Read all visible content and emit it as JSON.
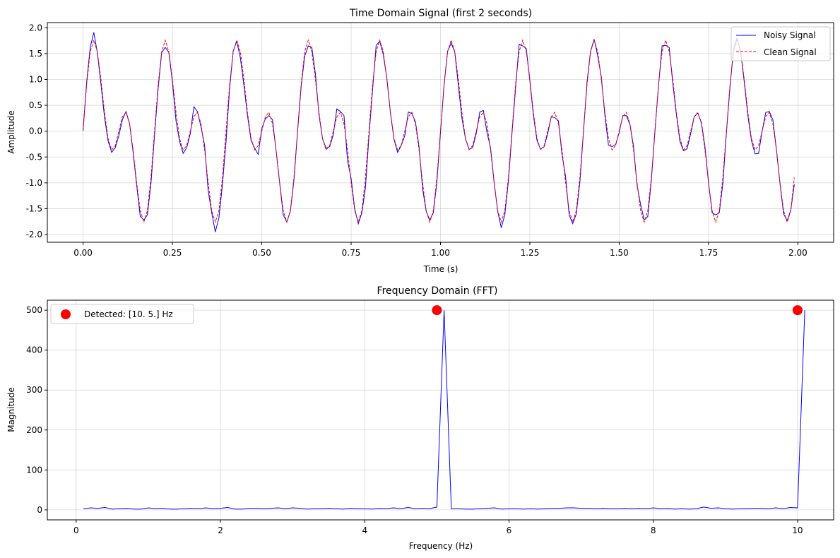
{
  "colors": {
    "noisy": "#0000ff",
    "clean": "#ff0000",
    "fft": "#0000ff",
    "peak": "#ff0000",
    "grid": "#b0b0b0",
    "axes": "#000000"
  },
  "chart_data": [
    {
      "type": "line",
      "title": "Time Domain Signal (first 2 seconds)",
      "xlabel": "Time (s)",
      "ylabel": "Amplitude",
      "xlim": [
        -0.1,
        2.1
      ],
      "ylim": [
        -2.15,
        2.1
      ],
      "xticks": [
        0,
        0.25,
        0.5,
        0.75,
        1.0,
        1.25,
        1.5,
        1.75,
        2.0
      ],
      "xtick_labels": [
        "0.00",
        "0.25",
        "0.50",
        "0.75",
        "1.00",
        "1.25",
        "1.50",
        "1.75",
        "2.00"
      ],
      "yticks": [
        -2.0,
        -1.5,
        -1.0,
        -0.5,
        0.0,
        0.5,
        1.0,
        1.5,
        2.0
      ],
      "ytick_labels": [
        "-2.0",
        "-1.5",
        "-1.0",
        "-0.5",
        "0.0",
        "0.5",
        "1.0",
        "1.5",
        "2.0"
      ],
      "grid": true,
      "legend_position": "top-right",
      "signal": {
        "sample_interval": 0.01,
        "duration": 2.0,
        "components": [
          {
            "frequency": 10,
            "amplitude": 1.0
          },
          {
            "frequency": 5,
            "amplitude": 1.0
          }
        ],
        "noisy_values": [
          0.02,
          0.95,
          1.62,
          1.91,
          1.52,
          0.91,
          0.27,
          -0.19,
          -0.41,
          -0.32,
          -0.09,
          0.22,
          0.38,
          0.15,
          -0.41,
          -1.05,
          -1.65,
          -1.72,
          -1.62,
          -1.01,
          -0.08,
          0.82,
          1.52,
          1.62,
          1.52,
          0.95,
          0.2,
          -0.2,
          -0.43,
          -0.32,
          -0.05,
          0.47,
          0.38,
          0.08,
          -0.27,
          -1.15,
          -1.58,
          -1.95,
          -1.68,
          -1.03,
          -0.2,
          0.82,
          1.55,
          1.74,
          1.42,
          0.89,
          0.3,
          -0.18,
          -0.33,
          -0.45,
          0.05,
          0.24,
          0.3,
          0.22,
          -0.37,
          -1.0,
          -1.62,
          -1.76,
          -1.55,
          -0.95,
          -0.02,
          0.85,
          1.45,
          1.65,
          1.62,
          1.11,
          0.32,
          -0.15,
          -0.33,
          -0.3,
          -0.07,
          0.43,
          0.38,
          0.3,
          -0.57,
          -0.92,
          -1.5,
          -1.79,
          -1.58,
          -1.1,
          -0.09,
          0.8,
          1.66,
          1.74,
          1.48,
          1.02,
          0.35,
          -0.16,
          -0.41,
          -0.28,
          -0.09,
          0.37,
          0.34,
          0.18,
          -0.3,
          -1.12,
          -1.55,
          -1.72,
          -1.58,
          -0.98,
          -0.02,
          0.89,
          1.55,
          1.7,
          1.53,
          0.88,
          0.25,
          -0.15,
          -0.35,
          -0.32,
          -0.05,
          0.37,
          0.4,
          -0.02,
          -0.32,
          -0.98,
          -1.55,
          -1.87,
          -1.62,
          -0.97,
          -0.05,
          0.82,
          1.68,
          1.65,
          1.6,
          0.98,
          0.3,
          -0.18,
          -0.35,
          -0.3,
          -0.05,
          0.28,
          0.26,
          0.2,
          -0.45,
          -0.88,
          -1.62,
          -1.79,
          -1.6,
          -0.99,
          -0.02,
          0.95,
          1.55,
          1.78,
          1.45,
          1.05,
          0.3,
          -0.27,
          -0.3,
          -0.26,
          -0.03,
          0.3,
          0.3,
          0.13,
          -0.29,
          -1.05,
          -1.42,
          -1.72,
          -1.65,
          -0.95,
          0.0,
          0.88,
          1.65,
          1.66,
          1.62,
          0.92,
          0.32,
          -0.2,
          -0.38,
          -0.34,
          -0.05,
          0.28,
          0.35,
          0.17,
          -0.3,
          -1.0,
          -1.58,
          -1.62,
          -1.58,
          -1.02,
          -0.03,
          0.85,
          1.6,
          1.8,
          1.52,
          0.95,
          0.3,
          -0.18,
          -0.44,
          -0.43,
          0.0,
          0.36,
          0.38,
          0.22,
          -0.36,
          -1.02,
          -1.6,
          -1.73,
          -1.53,
          -1.03
        ]
      }
    },
    {
      "type": "line",
      "title": "Frequency Domain (FFT)",
      "xlabel": "Frequency (Hz)",
      "ylabel": "Magnitude",
      "xlim": [
        -0.4,
        10.5
      ],
      "ylim": [
        -25,
        525
      ],
      "xticks": [
        0,
        2,
        4,
        6,
        8,
        10
      ],
      "xtick_labels": [
        "0",
        "2",
        "4",
        "6",
        "8",
        "10"
      ],
      "yticks": [
        0,
        100,
        200,
        300,
        400,
        500
      ],
      "ytick_labels": [
        "0",
        "100",
        "200",
        "300",
        "400",
        "500"
      ],
      "grid": true,
      "legend_position": "top-left",
      "spectrum": {
        "frequency_step": 0.1,
        "frequency_start": 0.1,
        "magnitudes": [
          3,
          5,
          4,
          6,
          2,
          3,
          4,
          2,
          2,
          5,
          3,
          4,
          2,
          2,
          3,
          4,
          3,
          5,
          3,
          4,
          6,
          2,
          2,
          4,
          4,
          3,
          4,
          5,
          3,
          5,
          4,
          2,
          3,
          3,
          4,
          3,
          2,
          4,
          3,
          3,
          2,
          4,
          3,
          5,
          3,
          6,
          3,
          4,
          3,
          7,
          500,
          3,
          3,
          2,
          2,
          3,
          4,
          5,
          2,
          3,
          3,
          2,
          3,
          2,
          3,
          4,
          4,
          5,
          5,
          4,
          4,
          3,
          4,
          3,
          3,
          4,
          3,
          4,
          3,
          5,
          3,
          4,
          2,
          3,
          2,
          3,
          7,
          4,
          5,
          3,
          2,
          3,
          3,
          4,
          4,
          3,
          5,
          3,
          6,
          5,
          500
        ]
      },
      "peaks": {
        "x": [
          10,
          5
        ],
        "y": [
          500,
          500
        ]
      },
      "legend_label": "Detected: [10.  5.] Hz"
    }
  ],
  "legend_top": {
    "noisy_label": "Noisy Signal",
    "clean_label": "Clean Signal"
  }
}
